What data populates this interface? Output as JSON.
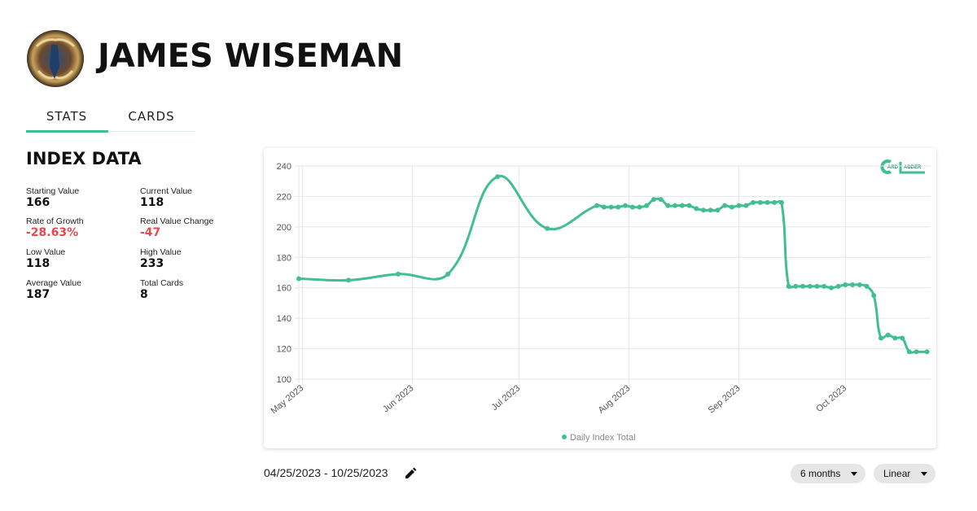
{
  "header": {
    "name": "JAMES WISEMAN"
  },
  "tabs": [
    "STATS",
    "CARDS"
  ],
  "index_data": {
    "title": "INDEX DATA",
    "stats": [
      {
        "label": "Starting Value",
        "value": "166"
      },
      {
        "label": "Current Value",
        "value": "118"
      },
      {
        "label": "Rate of Growth",
        "value": "-28.63%"
      },
      {
        "label": "Real Value Change",
        "value": "-47"
      },
      {
        "label": "Low Value",
        "value": "118"
      },
      {
        "label": "High Value",
        "value": "233"
      },
      {
        "label": "Average Value",
        "value": "187"
      },
      {
        "label": "Total Cards",
        "value": "8"
      }
    ]
  },
  "chart_data": {
    "type": "line",
    "logo": [
      "ARD",
      "ADDER"
    ],
    "x": [
      5,
      19,
      33,
      47,
      61,
      75,
      89,
      91,
      93,
      95,
      97,
      99,
      101,
      103,
      105,
      107,
      109,
      111,
      113,
      115,
      117,
      119,
      121,
      123,
      125,
      127,
      129,
      131,
      133,
      135,
      137,
      139,
      141,
      143,
      145,
      147,
      149,
      151,
      153,
      155,
      157,
      159,
      161,
      163,
      165,
      167,
      169,
      171,
      173,
      175,
      177,
      179,
      182
    ],
    "series": [
      {
        "name": "Daily Index Total",
        "color": "#41bf8f",
        "values": [
          166,
          165,
          169,
          169,
          233,
          199,
          214,
          213,
          213,
          213,
          214,
          213,
          213,
          214,
          218,
          218,
          214,
          214,
          214,
          214,
          212,
          211,
          211,
          211,
          214,
          213,
          214,
          214,
          216,
          216,
          216,
          216,
          216,
          161,
          161,
          161,
          161,
          161,
          161,
          160,
          161,
          162,
          162,
          162,
          161,
          155,
          127,
          129,
          127,
          127,
          118,
          118,
          118
        ]
      }
    ],
    "xlim": [
      5,
      183
    ],
    "xticks": [
      {
        "value": 6,
        "label": "May 2023"
      },
      {
        "value": 37,
        "label": "Jun 2023"
      },
      {
        "value": 67,
        "label": "Jul 2023"
      },
      {
        "value": 98,
        "label": "Aug 2023"
      },
      {
        "value": 129,
        "label": "Sep 2023"
      },
      {
        "value": 159,
        "label": "Oct 2023"
      }
    ],
    "ylim": [
      100,
      240
    ],
    "yticks": [
      100,
      120,
      140,
      160,
      180,
      200,
      220,
      240
    ],
    "grid": true,
    "legend": "bottom"
  },
  "footer": {
    "date_range": "04/25/2023 - 10/25/2023",
    "controls": [
      "6 months",
      "Linear"
    ]
  }
}
